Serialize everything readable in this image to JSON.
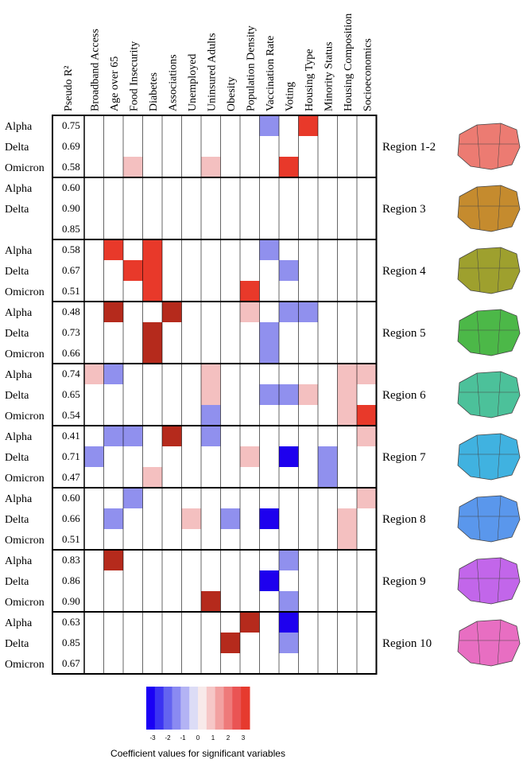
{
  "chart_data": {
    "type": "heatmap",
    "columns": [
      "Pseudo R²",
      "Broadband Access",
      "Age over 65",
      "Food Insecurity",
      "Diabetes",
      "Associations",
      "Unemployed",
      "Uninsured Adults",
      "Obesity",
      "Population Density",
      "Vaccination Rate",
      "Voting",
      "Housing Type",
      "Minority Status",
      "Housing Composition",
      "Socioeconomics"
    ],
    "variant_labels": [
      "Alpha",
      "Delta",
      "Omicron"
    ],
    "regions": [
      {
        "name": "Region 1-2",
        "map_color": "#ec7b72",
        "rows": [
          {
            "variant": "Alpha",
            "r2": "0.75",
            "values": [
              0,
              0,
              0,
              0,
              0,
              0,
              0,
              0,
              0,
              -1.5,
              0,
              3,
              0,
              0,
              0
            ]
          },
          {
            "variant": "Delta",
            "r2": "0.69",
            "values": [
              0,
              0,
              0,
              0,
              0,
              0,
              0,
              0,
              0,
              0,
              0,
              0,
              0,
              0,
              0
            ]
          },
          {
            "variant": "Omicron",
            "r2": "0.58",
            "values": [
              0,
              0,
              1,
              0,
              0,
              0,
              1,
              0,
              0,
              0,
              3,
              0,
              0,
              0,
              0
            ]
          }
        ]
      },
      {
        "name": "Region 3",
        "map_color": "#c58b2e",
        "rows": [
          {
            "variant": "Alpha",
            "r2": "0.60",
            "values": [
              0,
              0,
              0,
              0,
              0,
              0,
              0,
              0,
              0,
              0,
              0,
              0,
              0,
              0,
              0
            ]
          },
          {
            "variant": "Delta",
            "r2": "0.90",
            "values": [
              0,
              0,
              0,
              0,
              0,
              0,
              0,
              0,
              0,
              0,
              0,
              0,
              0,
              0,
              0
            ]
          },
          {
            "variant": "",
            "r2": "0.85",
            "values": [
              0,
              0,
              0,
              0,
              0,
              0,
              0,
              0,
              0,
              0,
              0,
              0,
              0,
              0,
              0
            ]
          }
        ]
      },
      {
        "name": "Region 4",
        "map_color": "#9ea02e",
        "rows": [
          {
            "variant": "Alpha",
            "r2": "0.58",
            "values": [
              0,
              3,
              0,
              3,
              0,
              0,
              0,
              0,
              0,
              -1.5,
              0,
              0,
              0,
              0,
              0
            ]
          },
          {
            "variant": "Delta",
            "r2": "0.67",
            "values": [
              0,
              0,
              3,
              3,
              0,
              0,
              0,
              0,
              0,
              0,
              -1.5,
              0,
              0,
              0,
              0
            ]
          },
          {
            "variant": "Omicron",
            "r2": "0.51",
            "values": [
              0,
              0,
              0,
              3,
              0,
              0,
              0,
              0,
              3,
              0,
              0,
              0,
              0,
              0,
              0
            ]
          }
        ]
      },
      {
        "name": "Region 5",
        "map_color": "#4cb848",
        "rows": [
          {
            "variant": "Alpha",
            "r2": "0.48",
            "values": [
              0,
              3.5,
              0,
              0,
              3.5,
              0,
              0,
              0,
              1,
              0,
              -1.5,
              -1.5,
              0,
              0,
              0
            ]
          },
          {
            "variant": "Delta",
            "r2": "0.73",
            "values": [
              0,
              0,
              0,
              3.5,
              0,
              0,
              0,
              0,
              0,
              -1.5,
              0,
              0,
              0,
              0,
              0
            ]
          },
          {
            "variant": "Omicron",
            "r2": "0.66",
            "values": [
              0,
              0,
              0,
              3.5,
              0,
              0,
              0,
              0,
              0,
              -1.5,
              0,
              0,
              0,
              0,
              0
            ]
          }
        ]
      },
      {
        "name": "Region 6",
        "map_color": "#4cc19a",
        "rows": [
          {
            "variant": "Alpha",
            "r2": "0.74",
            "values": [
              1,
              -1.5,
              0,
              0,
              0,
              0,
              1,
              0,
              0,
              0,
              0,
              0,
              0,
              1,
              1
            ]
          },
          {
            "variant": "Delta",
            "r2": "0.65",
            "values": [
              0,
              0,
              0,
              0,
              0,
              0,
              1,
              0,
              0,
              -1.5,
              -1.5,
              1,
              0,
              1,
              0
            ]
          },
          {
            "variant": "Omicron",
            "r2": "0.54",
            "values": [
              0,
              0,
              0,
              0,
              0,
              0,
              -1.5,
              0,
              0,
              0,
              0,
              0,
              0,
              1,
              3
            ]
          }
        ]
      },
      {
        "name": "Region 7",
        "map_color": "#40b2e0",
        "rows": [
          {
            "variant": "Alpha",
            "r2": "0.41",
            "values": [
              0,
              -1.5,
              -1.5,
              0,
              3.5,
              0,
              -1.5,
              0,
              0,
              0,
              0,
              0,
              0,
              0,
              1
            ]
          },
          {
            "variant": "Delta",
            "r2": "0.71",
            "values": [
              -1.5,
              0,
              0,
              0,
              0,
              0,
              0,
              0,
              1,
              0,
              -3.5,
              0,
              -1.5,
              0,
              0
            ]
          },
          {
            "variant": "Omicron",
            "r2": "0.47",
            "values": [
              0,
              0,
              0,
              1,
              0,
              0,
              0,
              0,
              0,
              0,
              0,
              0,
              -1.5,
              0,
              0
            ]
          }
        ]
      },
      {
        "name": "Region 8",
        "map_color": "#5a97ec",
        "rows": [
          {
            "variant": "Alpha",
            "r2": "0.60",
            "values": [
              0,
              0,
              -1.5,
              0,
              0,
              0,
              0,
              0,
              0,
              0,
              0,
              0,
              0,
              0,
              1
            ]
          },
          {
            "variant": "Delta",
            "r2": "0.66",
            "values": [
              0,
              -1.5,
              0,
              0,
              0,
              1,
              0,
              -1.5,
              0,
              -3.5,
              0,
              0,
              0,
              1,
              0
            ]
          },
          {
            "variant": "Omicron",
            "r2": "0.51",
            "values": [
              0,
              0,
              0,
              0,
              0,
              0,
              0,
              0,
              0,
              0,
              0,
              0,
              0,
              1,
              0
            ]
          }
        ]
      },
      {
        "name": "Region 9",
        "map_color": "#c266ea",
        "rows": [
          {
            "variant": "Alpha",
            "r2": "0.83",
            "values": [
              0,
              3.5,
              0,
              0,
              0,
              0,
              0,
              0,
              0,
              0,
              -1.5,
              0,
              0,
              0,
              0
            ]
          },
          {
            "variant": "Delta",
            "r2": "0.86",
            "values": [
              0,
              0,
              0,
              0,
              0,
              0,
              0,
              0,
              0,
              -3.5,
              0,
              0,
              0,
              0,
              0
            ]
          },
          {
            "variant": "Omicron",
            "r2": "0.90",
            "values": [
              0,
              0,
              0,
              0,
              0,
              0,
              3.5,
              0,
              0,
              0,
              -1.5,
              0,
              0,
              0,
              0
            ]
          }
        ]
      },
      {
        "name": "Region 10",
        "map_color": "#e86ec2",
        "rows": [
          {
            "variant": "Alpha",
            "r2": "0.63",
            "values": [
              0,
              0,
              0,
              0,
              0,
              0,
              0,
              0,
              3.5,
              0,
              -3.5,
              0,
              0,
              0,
              0
            ]
          },
          {
            "variant": "Delta",
            "r2": "0.85",
            "values": [
              0,
              0,
              0,
              0,
              0,
              0,
              0,
              3.5,
              0,
              0,
              -1.5,
              0,
              0,
              0,
              0
            ]
          },
          {
            "variant": "Omicron",
            "r2": "0.67",
            "values": [
              0,
              0,
              0,
              0,
              0,
              0,
              0,
              0,
              0,
              0,
              0,
              0,
              0,
              0,
              0
            ]
          }
        ]
      }
    ],
    "legend": {
      "title": "Coefficient values for significant variables",
      "ticks": [
        "-3",
        "-2",
        "-1",
        "0",
        "1",
        "2",
        "3"
      ],
      "colors": [
        "#1a00f5",
        "#3b33f2",
        "#6363f0",
        "#8a8af2",
        "#b3b3f4",
        "#dcdcf6",
        "#f8eaea",
        "#f6c7c7",
        "#f2a1a1",
        "#ee7a7a",
        "#ea5454",
        "#e63a2e"
      ]
    }
  }
}
